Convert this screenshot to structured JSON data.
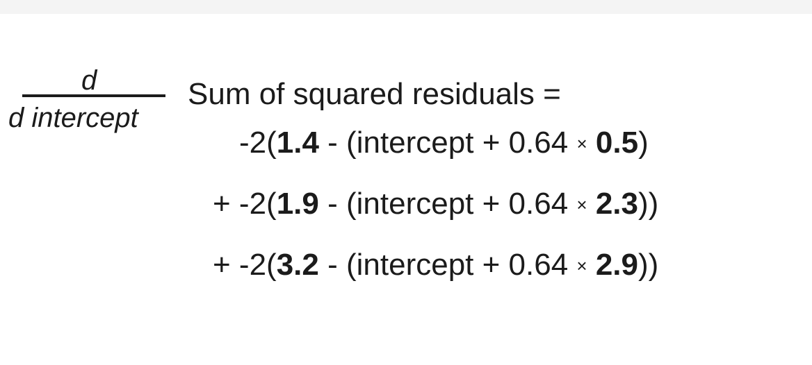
{
  "fraction": {
    "numerator": "d",
    "denominator": "d intercept"
  },
  "equation_lhs": "Sum of squared residuals =",
  "terms": [
    {
      "prefix": "-2(",
      "observed": "1.4",
      "middle": " - (intercept + 0.64 ",
      "times": "×",
      "weight": "0.5",
      "suffix": ")"
    },
    {
      "prefix": "+ -2(",
      "observed": "1.9",
      "middle": " - (intercept + 0.64 ",
      "times": "×",
      "weight": "2.3",
      "suffix": "))"
    },
    {
      "prefix": "+ -2(",
      "observed": "3.2",
      "middle": " - (intercept + 0.64 ",
      "times": "×",
      "weight": "2.9",
      "suffix": "))"
    }
  ]
}
